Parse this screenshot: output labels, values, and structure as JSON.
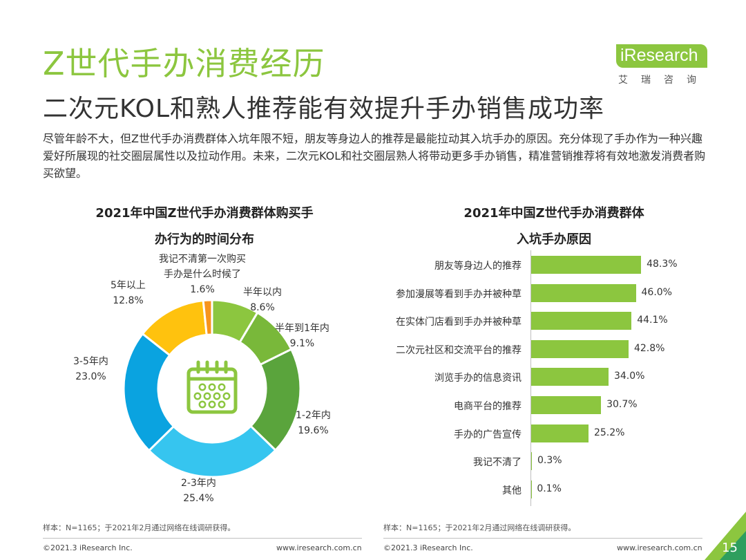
{
  "header": {
    "title": "Z世代手办消费经历",
    "subtitle": "二次元KOL和熟人推荐能有效提升手办销售成功率",
    "logo_text": "iResearch",
    "logo_cn": "艾瑞咨询"
  },
  "intro": "尽管年龄不大，但Z世代手办消费群体入坑年限不短，朋友等身边人的推荐是最能拉动其入坑手办的原因。充分体现了手办作为一种兴趣爱好所展现的社交圈层属性以及拉动作用。未来，二次元KOL和社交圈层熟人将带动更多手办销售，精准营销推荐将有效地激发消费者购买欲望。",
  "chart_data": [
    {
      "type": "pie",
      "title_lines": [
        "2021年中国Z世代手办消费群体购买手",
        "办行为的时间分布"
      ],
      "donut": true,
      "categories": [
        "半年以内",
        "半年到1年内",
        "1-2年内",
        "2-3年内",
        "3-5年内",
        "5年以上",
        "我记不清第一次购买手办是什么时候了"
      ],
      "label_lines": [
        [
          "半年以内"
        ],
        [
          "半年到1年内"
        ],
        [
          "1-2年内"
        ],
        [
          "2-3年内"
        ],
        [
          "3-5年内"
        ],
        [
          "5年以上"
        ],
        [
          "我记不清第一次购买",
          "手办是什么时候了"
        ]
      ],
      "values": [
        8.6,
        9.1,
        19.6,
        25.4,
        23.0,
        12.8,
        1.6
      ],
      "value_labels": [
        "8.6%",
        "9.1%",
        "19.6%",
        "25.4%",
        "23.0%",
        "12.8%",
        "1.6%"
      ],
      "colors": [
        "#8cc63f",
        "#79b83a",
        "#5aa43c",
        "#36c5ef",
        "#0aa3e0",
        "#ffc20e",
        "#f7941d"
      ],
      "center_icon": "calendar-icon",
      "note": "样本：N=1165；于2021年2月通过网络在线调研获得。"
    },
    {
      "type": "bar",
      "orientation": "horizontal",
      "title_lines": [
        "2021年中国Z世代手办消费群体",
        "入坑手办原因"
      ],
      "categories": [
        "朋友等身边人的推荐",
        "参加漫展等看到手办并被种草",
        "在实体门店看到手办并被种草",
        "二次元社区和交流平台的推荐",
        "浏览手办的信息资讯",
        "电商平台的推荐",
        "手办的广告宣传",
        "我记不清了",
        "其他"
      ],
      "values": [
        48.3,
        46.0,
        44.1,
        42.8,
        34.0,
        30.7,
        25.2,
        0.3,
        0.1
      ],
      "value_labels": [
        "48.3%",
        "46.0%",
        "44.1%",
        "42.8%",
        "34.0%",
        "30.7%",
        "25.2%",
        "0.3%",
        "0.1%"
      ],
      "xlim": [
        0,
        50
      ],
      "color": "#8cc63f",
      "note": "样本：N=1165；于2021年2月通过网络在线调研获得。"
    }
  ],
  "footer": {
    "left_copyright": "©2021.3 iResearch Inc.",
    "left_url": "www.iresearch.com.cn",
    "right_copyright": "©2021.3 iResearch Inc.",
    "right_url": "www.iresearch.com.cn",
    "page_number": "15"
  },
  "colors": {
    "accent": "#8cc63f",
    "accent_dark": "#2e9e5e"
  }
}
